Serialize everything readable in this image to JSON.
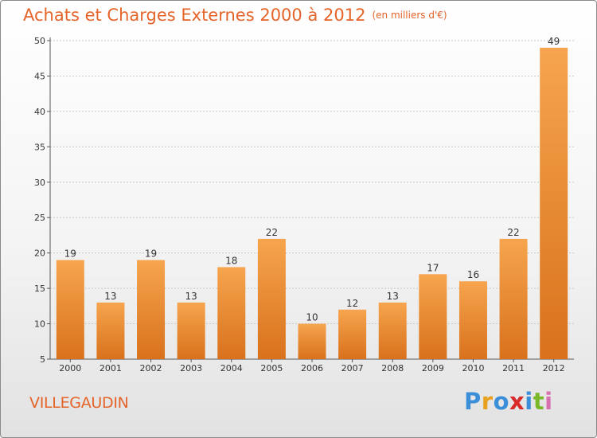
{
  "header": {
    "title": "Achats et Charges Externes 2000 à 2012",
    "unit": "(en milliers d'€)"
  },
  "footer": {
    "commune": "VILLEGAUDIN",
    "brand_letters": [
      "P",
      "r",
      "o",
      "x",
      "i",
      "t",
      "i"
    ],
    "brand_colors": [
      "#3a8fd8",
      "#e8a020",
      "#3a8fd8",
      "#d82a2a",
      "#3a8fd8",
      "#7ab82a",
      "#d870b0"
    ]
  },
  "colors": {
    "bar_top": "#f6a54e",
    "bar_bottom": "#d9711c",
    "title": "#e4642a",
    "grid": "#c8c8c8",
    "axis": "#555555"
  },
  "chart_data": {
    "type": "bar",
    "title": "Achats et Charges Externes 2000 à 2012",
    "subtitle": "(en milliers d'€)",
    "xlabel": "",
    "ylabel": "",
    "categories": [
      "2000",
      "2001",
      "2002",
      "2003",
      "2004",
      "2005",
      "2006",
      "2007",
      "2008",
      "2009",
      "2010",
      "2011",
      "2012"
    ],
    "values": [
      19,
      13,
      19,
      13,
      18,
      22,
      10,
      12,
      13,
      17,
      16,
      22,
      49
    ],
    "ylim": [
      5,
      50
    ],
    "yticks": [
      5,
      10,
      15,
      20,
      25,
      30,
      35,
      40,
      45,
      50
    ],
    "grid": true,
    "legend": "none"
  }
}
